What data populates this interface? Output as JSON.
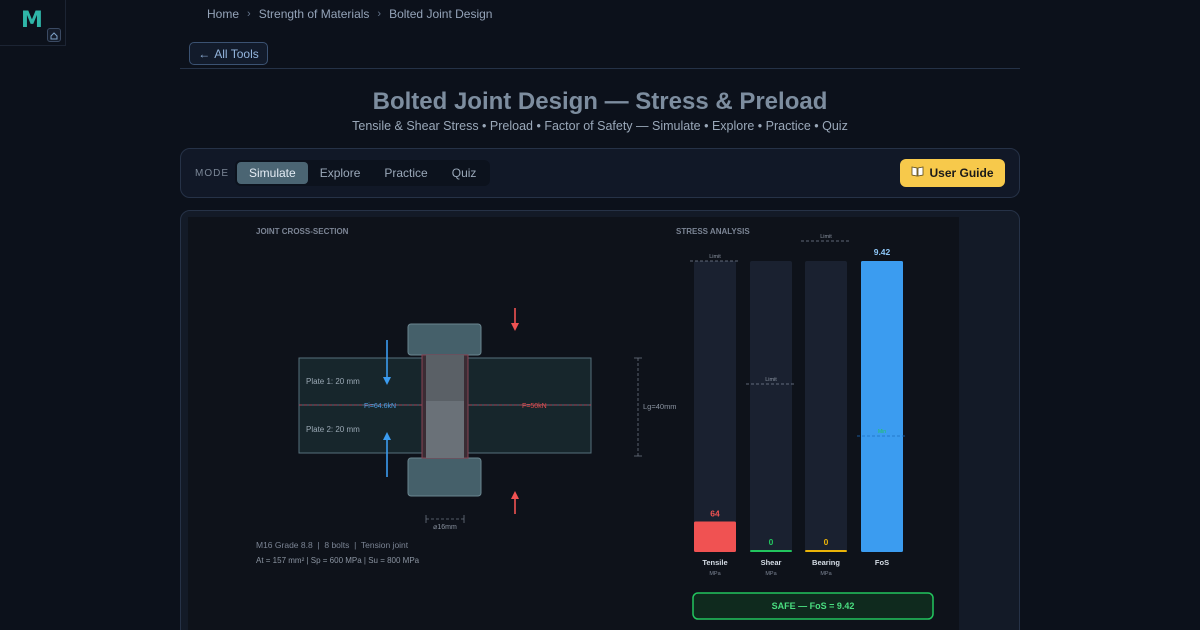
{
  "header": {
    "logo_letter": "M",
    "breadcrumb": [
      "Home",
      "Strength of Materials",
      "Bolted Joint Design"
    ],
    "breadcrumb_sep": "›",
    "all_tools_label": "All Tools",
    "title": "Bolted Joint Design — Stress & Preload",
    "subtitle": "Tensile & Shear Stress • Preload • Factor of Safety — Simulate • Explore • Practice • Quiz"
  },
  "mode_bar": {
    "label": "MODE",
    "tabs": [
      {
        "label": "Simulate",
        "active": true
      },
      {
        "label": "Explore",
        "active": false
      },
      {
        "label": "Practice",
        "active": false
      },
      {
        "label": "Quiz",
        "active": false
      }
    ],
    "guide_label": "User Guide"
  },
  "joint": {
    "heading": "JOINT CROSS-SECTION",
    "plate1": "Plate 1: 20 mm",
    "plate2": "Plate 2: 20 mm",
    "preload_label": "Fi=64.6kN",
    "force_label": "F=50kN",
    "grip_label": "Lg=40mm",
    "diameter_label": "⌀16mm",
    "spec_line": "M16 Grade 8.8  |  8 bolts  |  Tension joint",
    "props_line": "At = 157 mm² | Sp = 600 MPa | Su = 800 MPa"
  },
  "stress": {
    "heading": "STRESS ANALYSIS",
    "limit_label": "Limit",
    "bars": [
      {
        "name": "Tensile",
        "unit": "MPa",
        "value_text": "64",
        "fill_fraction": 0.105,
        "color": "#f05252"
      },
      {
        "name": "Shear",
        "unit": "MPa",
        "value_text": "0",
        "fill_fraction": 0.0,
        "color": "#22c55e"
      },
      {
        "name": "Bearing",
        "unit": "MPa",
        "value_text": "0",
        "fill_fraction": 0.0,
        "color": "#eab308"
      },
      {
        "name": "FoS",
        "unit": "",
        "value_text": "9.42",
        "fill_fraction": 1.0,
        "color": "#3b9cf0"
      }
    ],
    "fos_marker": "Min",
    "status": "SAFE — FoS = 9.42",
    "status_color": "#22c55e"
  },
  "colors": {
    "accent_teal": "#2fb6a8",
    "guide_yellow": "#f7c94b",
    "tension_red": "#f05252",
    "preload_blue": "#3b9cf0"
  }
}
